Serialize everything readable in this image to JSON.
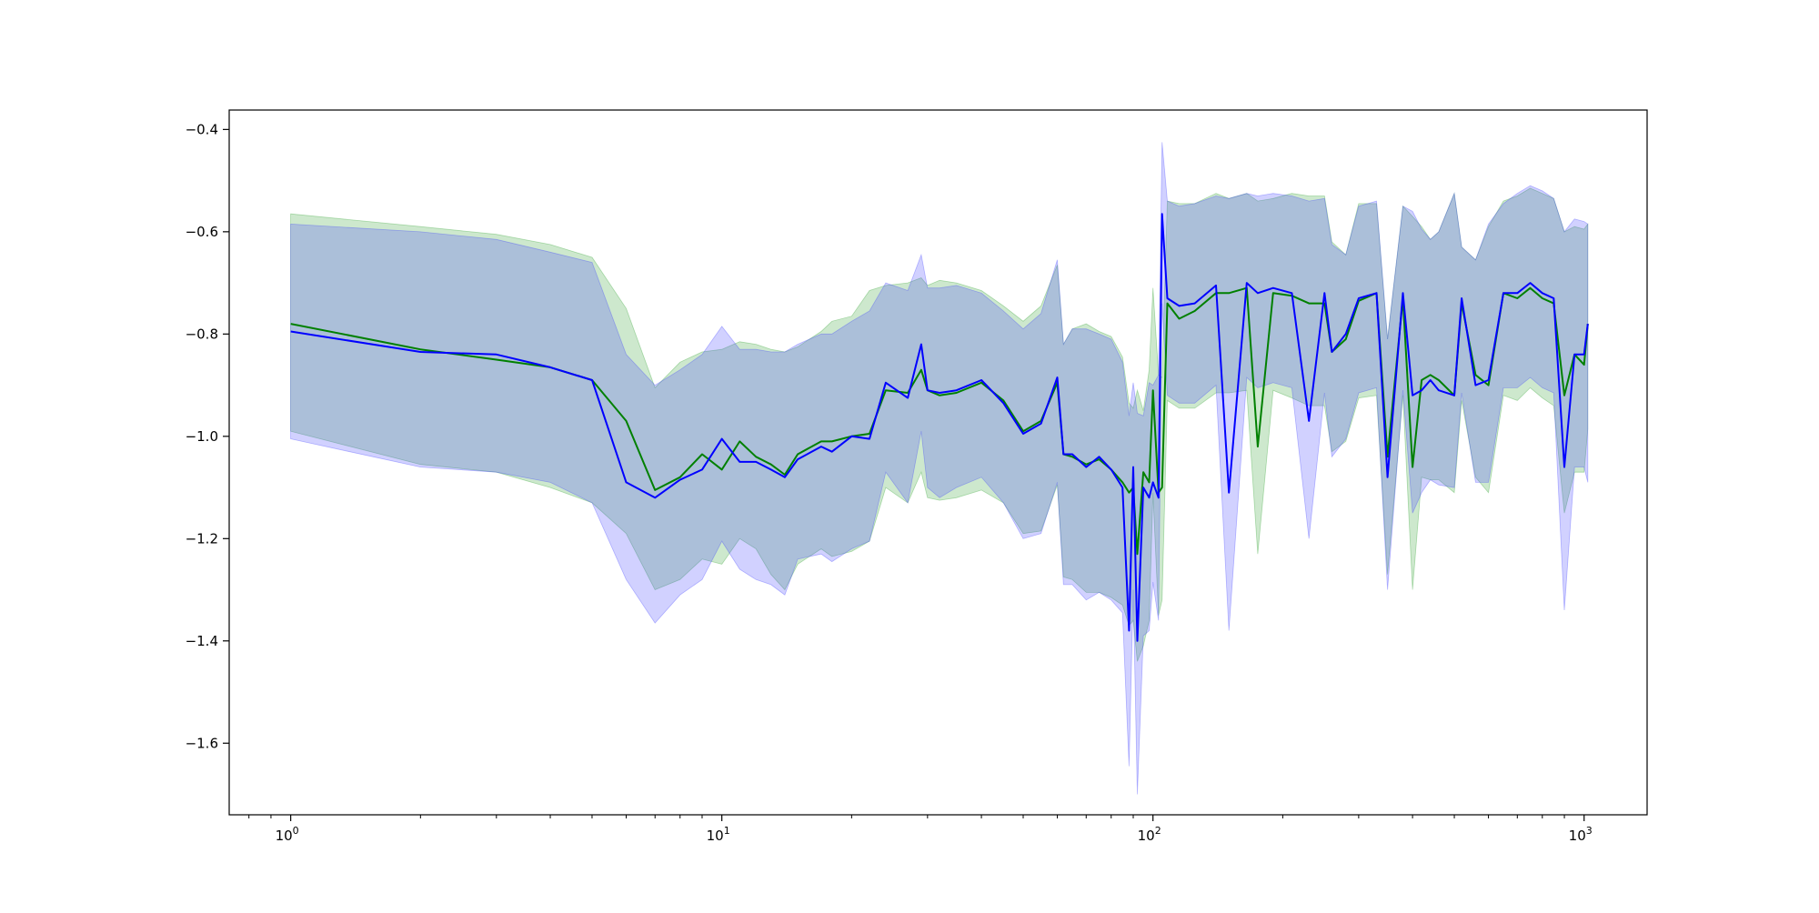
{
  "chart_data": {
    "type": "line",
    "title": "",
    "xlabel": "",
    "ylabel": "",
    "xscale": "log",
    "xlim": [
      0.72,
      1400
    ],
    "ylim": [
      -1.74,
      -0.362
    ],
    "grid": false,
    "legend": "none",
    "x_ticks": [
      {
        "value": 1,
        "base": "10",
        "exp": "0"
      },
      {
        "value": 10,
        "base": "10",
        "exp": "1"
      },
      {
        "value": 100,
        "base": "10",
        "exp": "2"
      },
      {
        "value": 1000,
        "base": "10",
        "exp": "3"
      }
    ],
    "y_ticks": [
      {
        "value": -0.4,
        "label": "−0.4"
      },
      {
        "value": -0.6,
        "label": "−0.6"
      },
      {
        "value": -0.8,
        "label": "−0.8"
      },
      {
        "value": -1.0,
        "label": "−1.0"
      },
      {
        "value": -1.2,
        "label": "−1.2"
      },
      {
        "value": -1.4,
        "label": "−1.4"
      },
      {
        "value": -1.6,
        "label": "−1.6"
      }
    ],
    "series": [
      {
        "color": "#008000",
        "band_color": "#2ca02c",
        "band_opacity": 0.24,
        "x": [
          1,
          2,
          3,
          4,
          5,
          6,
          7,
          8,
          9,
          10,
          11,
          12,
          13,
          14,
          15,
          17,
          18,
          20,
          22,
          24,
          27,
          29,
          30,
          32,
          35,
          40,
          45,
          50,
          55,
          60,
          62,
          65,
          70,
          75,
          80,
          85,
          88,
          90,
          92,
          95,
          98,
          100,
          103,
          105,
          108,
          115,
          125,
          140,
          150,
          165,
          175,
          190,
          210,
          230,
          250,
          260,
          280,
          300,
          330,
          350,
          380,
          400,
          420,
          440,
          460,
          500,
          520,
          560,
          600,
          650,
          700,
          750,
          800,
          850,
          900,
          950,
          1000,
          1020
        ],
        "y": [
          -0.78,
          -0.83,
          -0.85,
          -0.865,
          -0.89,
          -0.97,
          -1.105,
          -1.08,
          -1.035,
          -1.065,
          -1.01,
          -1.04,
          -1.055,
          -1.075,
          -1.035,
          -1.01,
          -1.01,
          -1.0,
          -0.995,
          -0.91,
          -0.915,
          -0.87,
          -0.91,
          -0.92,
          -0.915,
          -0.895,
          -0.93,
          -0.99,
          -0.97,
          -0.895,
          -1.035,
          -1.04,
          -1.055,
          -1.045,
          -1.065,
          -1.09,
          -1.11,
          -1.1,
          -1.23,
          -1.07,
          -1.09,
          -0.91,
          -1.11,
          -1.1,
          -0.74,
          -0.77,
          -0.755,
          -0.72,
          -0.72,
          -0.71,
          -1.02,
          -0.72,
          -0.725,
          -0.74,
          -0.74,
          -0.835,
          -0.81,
          -0.735,
          -0.72,
          -1.04,
          -0.73,
          -1.06,
          -0.89,
          -0.88,
          -0.89,
          -0.92,
          -0.74,
          -0.88,
          -0.9,
          -0.72,
          -0.73,
          -0.71,
          -0.73,
          -0.74,
          -0.92,
          -0.84,
          -0.86,
          -0.78
        ],
        "upper": [
          -0.565,
          -0.59,
          -0.605,
          -0.625,
          -0.65,
          -0.75,
          -0.905,
          -0.855,
          -0.835,
          -0.83,
          -0.815,
          -0.82,
          -0.83,
          -0.835,
          -0.825,
          -0.795,
          -0.775,
          -0.765,
          -0.715,
          -0.705,
          -0.7,
          -0.69,
          -0.705,
          -0.695,
          -0.7,
          -0.715,
          -0.745,
          -0.775,
          -0.745,
          -0.665,
          -0.82,
          -0.79,
          -0.78,
          -0.795,
          -0.805,
          -0.845,
          -0.935,
          -0.945,
          -0.91,
          -0.95,
          -0.87,
          -0.71,
          -0.88,
          -0.885,
          -0.54,
          -0.545,
          -0.545,
          -0.525,
          -0.535,
          -0.525,
          -0.54,
          -0.535,
          -0.525,
          -0.53,
          -0.53,
          -0.62,
          -0.645,
          -0.545,
          -0.545,
          -0.81,
          -0.55,
          -0.57,
          -0.59,
          -0.615,
          -0.6,
          -0.525,
          -0.63,
          -0.655,
          -0.59,
          -0.54,
          -0.53,
          -0.515,
          -0.525,
          -0.535,
          -0.6,
          -0.59,
          -0.595,
          -0.585
        ],
        "lower": [
          -0.99,
          -1.055,
          -1.07,
          -1.1,
          -1.13,
          -1.19,
          -1.3,
          -1.28,
          -1.24,
          -1.25,
          -1.2,
          -1.22,
          -1.27,
          -1.3,
          -1.25,
          -1.22,
          -1.235,
          -1.225,
          -1.205,
          -1.1,
          -1.13,
          -1.07,
          -1.12,
          -1.125,
          -1.12,
          -1.105,
          -1.13,
          -1.19,
          -1.185,
          -1.095,
          -1.275,
          -1.28,
          -1.305,
          -1.305,
          -1.315,
          -1.33,
          -1.37,
          -1.36,
          -1.44,
          -1.41,
          -1.36,
          -1.11,
          -1.35,
          -1.32,
          -0.93,
          -0.945,
          -0.945,
          -0.915,
          -0.915,
          -0.91,
          -1.23,
          -0.91,
          -0.925,
          -0.94,
          -0.94,
          -1.03,
          -1.01,
          -0.925,
          -0.92,
          -1.27,
          -0.92,
          -1.3,
          -1.08,
          -1.085,
          -1.085,
          -1.11,
          -0.93,
          -1.08,
          -1.11,
          -0.92,
          -0.93,
          -0.905,
          -0.925,
          -0.94,
          -1.15,
          -1.07,
          -1.07,
          -0.985
        ]
      },
      {
        "color": "#0000ff",
        "band_color": "#4040ff",
        "band_opacity": 0.24,
        "x": [
          1,
          2,
          3,
          4,
          5,
          6,
          7,
          8,
          9,
          10,
          11,
          12,
          13,
          14,
          15,
          17,
          18,
          20,
          22,
          24,
          27,
          29,
          30,
          32,
          35,
          40,
          45,
          50,
          55,
          60,
          62,
          65,
          70,
          75,
          80,
          85,
          88,
          90,
          92,
          95,
          98,
          100,
          103,
          105,
          108,
          115,
          125,
          140,
          150,
          165,
          175,
          190,
          210,
          230,
          250,
          260,
          280,
          300,
          330,
          350,
          380,
          400,
          420,
          440,
          460,
          500,
          520,
          560,
          600,
          650,
          700,
          750,
          800,
          850,
          900,
          950,
          1000,
          1020
        ],
        "y": [
          -0.795,
          -0.835,
          -0.84,
          -0.865,
          -0.89,
          -1.09,
          -1.12,
          -1.085,
          -1.065,
          -1.005,
          -1.05,
          -1.05,
          -1.065,
          -1.08,
          -1.045,
          -1.02,
          -1.03,
          -1.0,
          -1.005,
          -0.895,
          -0.925,
          -0.82,
          -0.91,
          -0.915,
          -0.91,
          -0.89,
          -0.935,
          -0.995,
          -0.975,
          -0.885,
          -1.035,
          -1.035,
          -1.06,
          -1.04,
          -1.065,
          -1.1,
          -1.38,
          -1.06,
          -1.4,
          -1.1,
          -1.12,
          -1.09,
          -1.12,
          -0.565,
          -0.73,
          -0.745,
          -0.74,
          -0.705,
          -1.11,
          -0.7,
          -0.72,
          -0.71,
          -0.72,
          -0.97,
          -0.72,
          -0.835,
          -0.8,
          -0.73,
          -0.72,
          -1.08,
          -0.72,
          -0.92,
          -0.91,
          -0.89,
          -0.91,
          -0.92,
          -0.73,
          -0.9,
          -0.89,
          -0.72,
          -0.72,
          -0.7,
          -0.72,
          -0.73,
          -1.06,
          -0.84,
          -0.84,
          -0.78
        ],
        "upper": [
          -0.585,
          -0.6,
          -0.615,
          -0.64,
          -0.66,
          -0.84,
          -0.9,
          -0.87,
          -0.84,
          -0.785,
          -0.83,
          -0.83,
          -0.835,
          -0.835,
          -0.82,
          -0.8,
          -0.8,
          -0.775,
          -0.755,
          -0.7,
          -0.715,
          -0.645,
          -0.71,
          -0.71,
          -0.705,
          -0.72,
          -0.755,
          -0.79,
          -0.76,
          -0.655,
          -0.82,
          -0.79,
          -0.79,
          -0.8,
          -0.81,
          -0.855,
          -0.96,
          -0.895,
          -0.955,
          -0.96,
          -0.895,
          -0.9,
          -0.88,
          -0.425,
          -0.54,
          -0.55,
          -0.545,
          -0.53,
          -0.535,
          -0.525,
          -0.53,
          -0.525,
          -0.53,
          -0.54,
          -0.535,
          -0.625,
          -0.645,
          -0.55,
          -0.54,
          -0.81,
          -0.55,
          -0.56,
          -0.595,
          -0.615,
          -0.6,
          -0.525,
          -0.63,
          -0.655,
          -0.585,
          -0.545,
          -0.525,
          -0.51,
          -0.52,
          -0.535,
          -0.6,
          -0.575,
          -0.58,
          -0.585
        ],
        "lower": [
          -1.005,
          -1.06,
          -1.07,
          -1.09,
          -1.13,
          -1.28,
          -1.365,
          -1.31,
          -1.28,
          -1.205,
          -1.26,
          -1.28,
          -1.29,
          -1.31,
          -1.24,
          -1.23,
          -1.245,
          -1.22,
          -1.205,
          -1.07,
          -1.13,
          -0.99,
          -1.1,
          -1.12,
          -1.1,
          -1.08,
          -1.13,
          -1.2,
          -1.19,
          -1.09,
          -1.29,
          -1.29,
          -1.32,
          -1.305,
          -1.32,
          -1.345,
          -1.645,
          -1.3,
          -1.7,
          -1.39,
          -1.38,
          -1.285,
          -1.36,
          -0.74,
          -0.92,
          -0.935,
          -0.935,
          -0.9,
          -1.38,
          -0.885,
          -0.905,
          -0.895,
          -0.905,
          -1.2,
          -0.915,
          -1.04,
          -1.005,
          -0.915,
          -0.905,
          -1.3,
          -0.91,
          -1.15,
          -1.11,
          -1.085,
          -1.095,
          -1.1,
          -0.915,
          -1.09,
          -1.09,
          -0.905,
          -0.905,
          -0.885,
          -0.905,
          -0.915,
          -1.34,
          -1.06,
          -1.06,
          -1.09
        ]
      }
    ]
  }
}
